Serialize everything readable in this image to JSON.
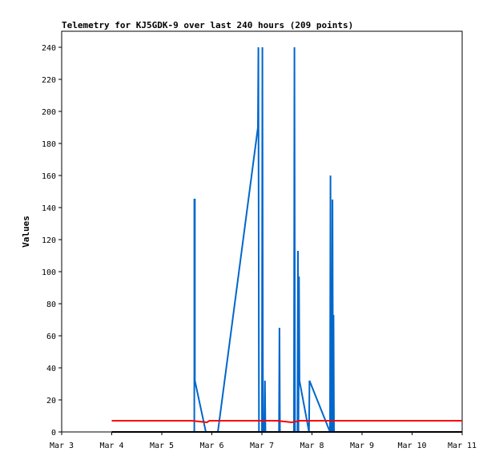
{
  "chart_data": {
    "type": "line",
    "title": "Telemetry for KJ5GDK-9 over last 240 hours (209 points)",
    "xlabel": "",
    "ylabel": "Values",
    "x_tick_labels": [
      "Mar 3",
      "Mar 4",
      "Mar 5",
      "Mar 6",
      "Mar 7",
      "Mar 8",
      "Mar 9",
      "Mar 10",
      "Mar 11"
    ],
    "x_unit": "days since Mar 3",
    "xlim": [
      0,
      8
    ],
    "ylim": [
      0,
      250
    ],
    "y_ticks": [
      0,
      20,
      40,
      60,
      80,
      100,
      120,
      140,
      160,
      180,
      200,
      220,
      240
    ],
    "grid": false,
    "series": [
      {
        "color": "#0066cc",
        "points": [
          [
            2.65,
            0
          ],
          [
            2.65,
            145
          ],
          [
            2.66,
            145
          ],
          [
            2.66,
            32
          ],
          [
            2.88,
            0
          ],
          [
            3.12,
            0
          ],
          [
            3.92,
            190
          ],
          [
            3.93,
            240
          ],
          [
            3.94,
            0
          ],
          [
            4.0,
            0
          ],
          [
            4.01,
            240
          ],
          [
            4.02,
            0
          ],
          [
            4.05,
            0
          ],
          [
            4.06,
            32
          ],
          [
            4.07,
            0
          ],
          [
            4.34,
            0
          ],
          [
            4.35,
            65
          ],
          [
            4.36,
            0
          ],
          [
            4.64,
            0
          ],
          [
            4.65,
            240
          ],
          [
            4.66,
            0
          ],
          [
            4.71,
            0
          ],
          [
            4.72,
            113
          ],
          [
            4.73,
            0
          ],
          [
            4.74,
            97
          ],
          [
            4.75,
            32
          ],
          [
            4.94,
            0
          ],
          [
            4.95,
            32
          ],
          [
            5.36,
            0
          ],
          [
            5.37,
            160
          ],
          [
            5.38,
            0
          ],
          [
            5.39,
            73
          ],
          [
            5.4,
            0
          ],
          [
            5.41,
            145
          ],
          [
            5.42,
            0
          ],
          [
            5.43,
            73
          ],
          [
            5.44,
            0
          ]
        ]
      },
      {
        "color": "#ff0000",
        "points": [
          [
            1.0,
            7
          ],
          [
            2.6,
            7
          ],
          [
            2.75,
            6.5
          ],
          [
            2.9,
            6
          ],
          [
            2.95,
            7
          ],
          [
            4.3,
            7
          ],
          [
            4.6,
            6
          ],
          [
            4.75,
            7
          ],
          [
            8.0,
            7
          ]
        ]
      },
      {
        "color": "#000000",
        "points": [
          [
            1.0,
            0
          ],
          [
            8.0,
            0
          ]
        ]
      }
    ]
  }
}
